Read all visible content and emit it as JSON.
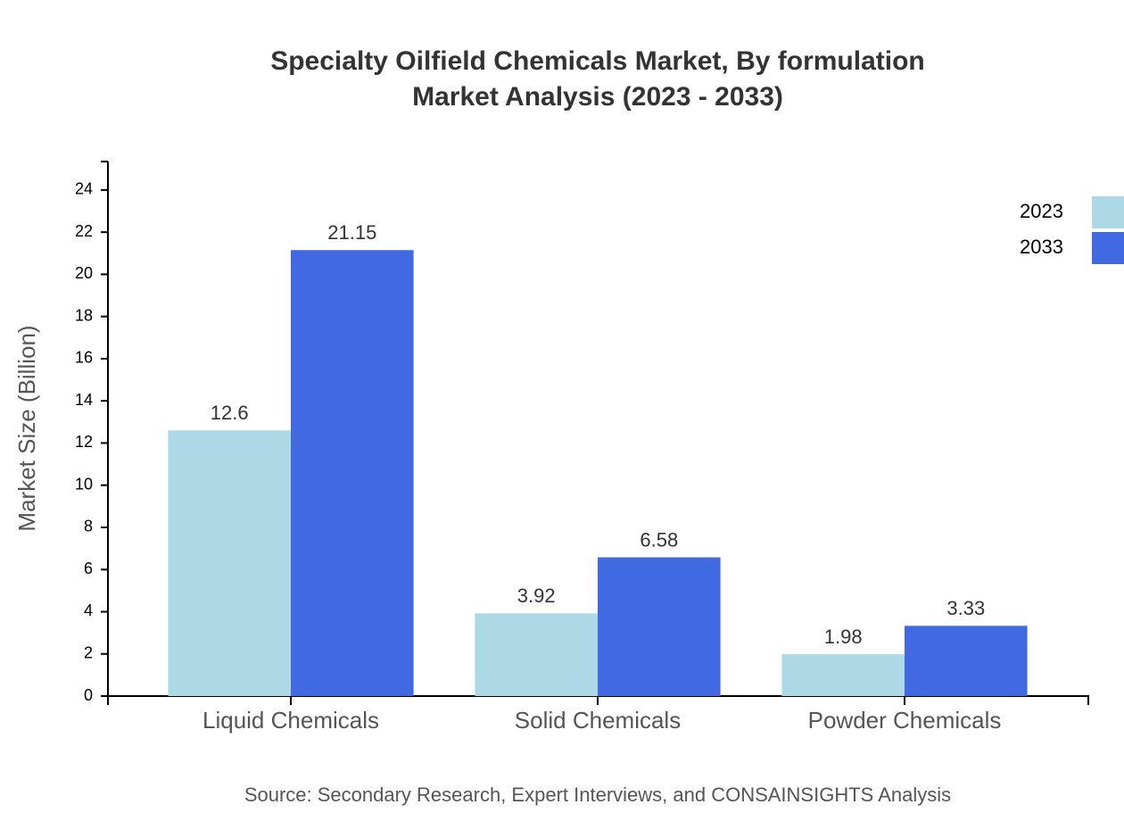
{
  "chart_data": {
    "type": "bar",
    "title": "Specialty Oilfield Chemicals Market, By formulation",
    "subtitle": "Market Analysis (2023 - 2033)",
    "y_label": "Market Size (Billion)",
    "source": "Source: Secondary Research, Expert Interviews, and CONSAINSIGHTS Analysis",
    "categories": [
      "Liquid Chemicals",
      "Solid Chemicals",
      "Powder Chemicals"
    ],
    "series": [
      {
        "name": "2023",
        "color": "#add8e6",
        "values": [
          12.6,
          3.92,
          1.98
        ]
      },
      {
        "name": "2033",
        "color": "#4169e1",
        "values": [
          21.15,
          6.58,
          3.33
        ]
      }
    ],
    "ylim": [
      0,
      25.35
    ],
    "yticks": [
      0,
      2,
      4,
      6,
      8,
      10,
      12,
      14,
      16,
      18,
      20,
      22,
      24
    ],
    "legend": "top-right"
  }
}
